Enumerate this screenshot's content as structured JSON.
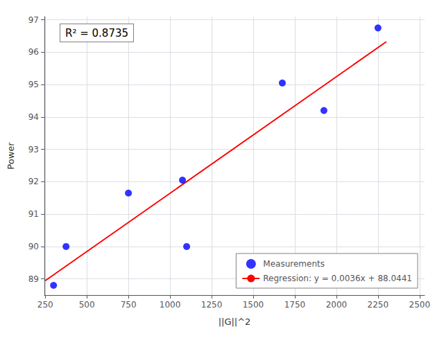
{
  "chart_data": {
    "type": "scatter",
    "xlabel": "||G||^2",
    "ylabel": "Power",
    "annotation": "R² = 0.8735",
    "series": [
      {
        "name": "Measurements",
        "type": "scatter",
        "marker": "circle",
        "color": "blue",
        "x": [
          300,
          375,
          750,
          1075,
          1100,
          1675,
          1925,
          2250
        ],
        "values": [
          88.8,
          90.0,
          91.65,
          92.05,
          90.0,
          95.05,
          94.2,
          96.75
        ]
      },
      {
        "name": "Regression: y = 0.0036x + 88.0441",
        "type": "line",
        "line_style": "solid",
        "color": "red",
        "x": [
          250,
          2300
        ],
        "values": [
          88.9441,
          96.3241
        ]
      }
    ],
    "xlim": [
      245,
      2530
    ],
    "xticks": [
      250,
      500,
      750,
      1000,
      1250,
      1500,
      1750,
      2000,
      2250,
      2500
    ],
    "ylim": [
      88.5,
      97.1
    ],
    "yticks": [
      89,
      90,
      91,
      92,
      93,
      94,
      95,
      96,
      97
    ],
    "grid": true,
    "legend": "lower right"
  }
}
